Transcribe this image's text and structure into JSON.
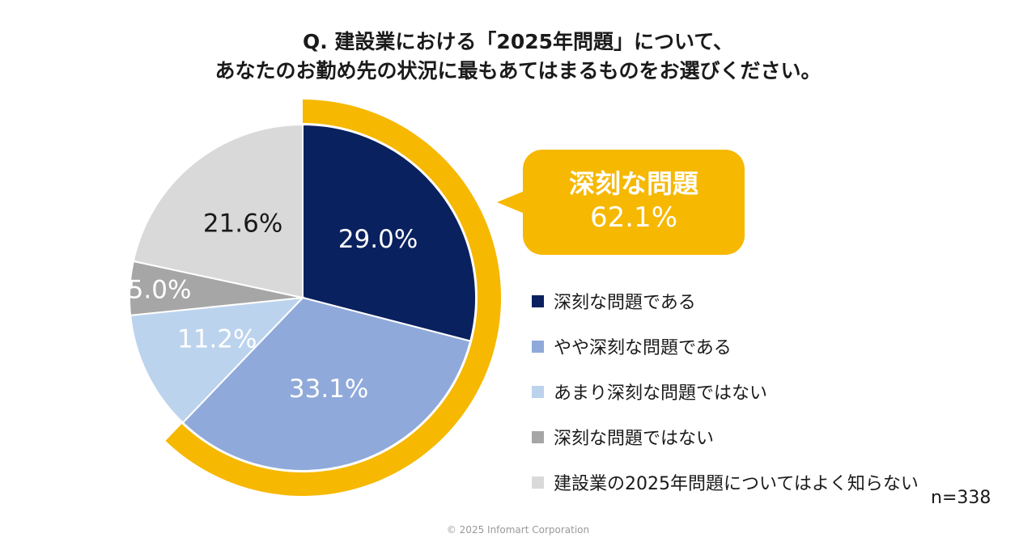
{
  "title": {
    "line1": "Q. 建設業における「2025年問題」について、",
    "line2": "あなたのお勤め先の状況に最もあてはまるものをお選びください。"
  },
  "chart_data": {
    "type": "pie",
    "title": "Q. 建設業における「2025年問題」について、あなたのお勤め先の状況に最もあてはまるものをお選びください。",
    "slices": [
      {
        "label": "深刻な問題である",
        "value": 29.0,
        "display": "29.0%",
        "color": "#0A2160",
        "text_color": "#ffffff"
      },
      {
        "label": "やや深刻な問題である",
        "value": 33.1,
        "display": "33.1%",
        "color": "#8FA9DA",
        "text_color": "#ffffff"
      },
      {
        "label": "あまり深刻な問題ではない",
        "value": 11.2,
        "display": "11.2%",
        "color": "#BCD3EE",
        "text_color": "#ffffff"
      },
      {
        "label": "深刻な問題ではない",
        "value": 5.0,
        "display": "5.0%",
        "color": "#A6A6A6",
        "text_color": "#ffffff"
      },
      {
        "label": "建設業の2025年問題についてはよく知らない",
        "value": 21.6,
        "display": "21.6%",
        "color": "#D9D9D9",
        "text_color": "#1a1a1a"
      }
    ],
    "highlight": {
      "label": "深刻な問題",
      "value": 62.1,
      "display": "62.1%",
      "color": "#F6B800",
      "covers_slices": 2
    },
    "n": "n=338"
  },
  "copyright": "© 2025 Infomart Corporation"
}
